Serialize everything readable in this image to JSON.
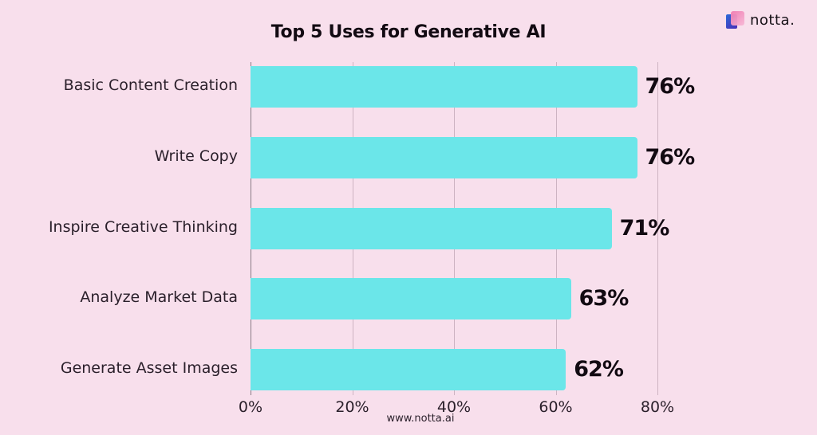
{
  "brand": {
    "name": "notta.",
    "icon": "notta-logo-icon"
  },
  "footer": {
    "url": "www.notta.ai"
  },
  "colors": {
    "background": "#f8dfec",
    "bar": "#6be6e9",
    "text": "#120a12",
    "grid": "#cdb3c2"
  },
  "chart_data": {
    "type": "bar",
    "orientation": "horizontal",
    "title": "Top 5 Uses for Generative AI",
    "categories": [
      "Basic Content Creation",
      "Write Copy",
      "Inspire Creative Thinking",
      "Analyze Market Data",
      "Generate Asset Images"
    ],
    "values": [
      76,
      76,
      71,
      63,
      62
    ],
    "value_labels": [
      "76%",
      "76%",
      "71%",
      "63%",
      "62%"
    ],
    "xlabel": "",
    "ylabel": "",
    "xlim": [
      0,
      80
    ],
    "x_ticks": [
      "0%",
      "20%",
      "40%",
      "60%",
      "80%"
    ],
    "grid": true,
    "legend": null
  }
}
